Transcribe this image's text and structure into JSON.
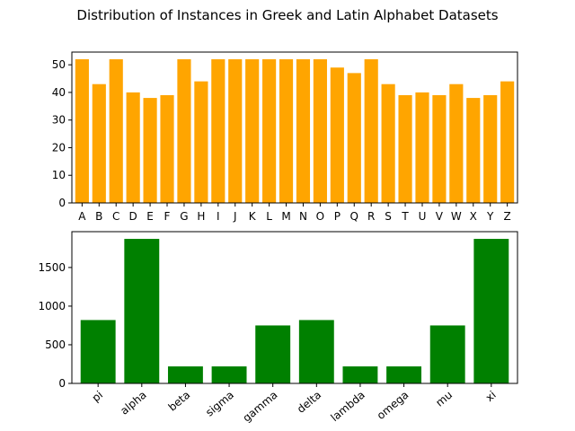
{
  "figure": {
    "title": "Distribution of Instances in Greek and Latin Alphabet Datasets"
  },
  "chart_data": [
    {
      "type": "bar",
      "title": "",
      "xlabel": "",
      "ylabel": "",
      "color": "#ffa500",
      "categories": [
        "A",
        "B",
        "C",
        "D",
        "E",
        "F",
        "G",
        "H",
        "I",
        "J",
        "K",
        "L",
        "M",
        "N",
        "O",
        "P",
        "Q",
        "R",
        "S",
        "T",
        "U",
        "V",
        "W",
        "X",
        "Y",
        "Z"
      ],
      "values": [
        52,
        43,
        52,
        40,
        38,
        39,
        52,
        44,
        52,
        52,
        52,
        52,
        52,
        52,
        52,
        49,
        47,
        52,
        43,
        39,
        40,
        39,
        43,
        38,
        39,
        44
      ],
      "ylim": [
        0,
        54.6
      ],
      "yticks": [
        0,
        10,
        20,
        30,
        40,
        50
      ],
      "xtick_rotation": 0,
      "grid": false
    },
    {
      "type": "bar",
      "title": "",
      "xlabel": "",
      "ylabel": "",
      "color": "#008000",
      "categories": [
        "pi",
        "alpha",
        "beta",
        "sigma",
        "gamma",
        "delta",
        "lambda",
        "omega",
        "mu",
        "xi"
      ],
      "values": [
        820,
        1870,
        220,
        220,
        750,
        820,
        220,
        220,
        750,
        1870
      ],
      "ylim": [
        0,
        1963.5
      ],
      "yticks": [
        0,
        500,
        1000,
        1500
      ],
      "xtick_rotation": -40,
      "grid": false
    }
  ]
}
